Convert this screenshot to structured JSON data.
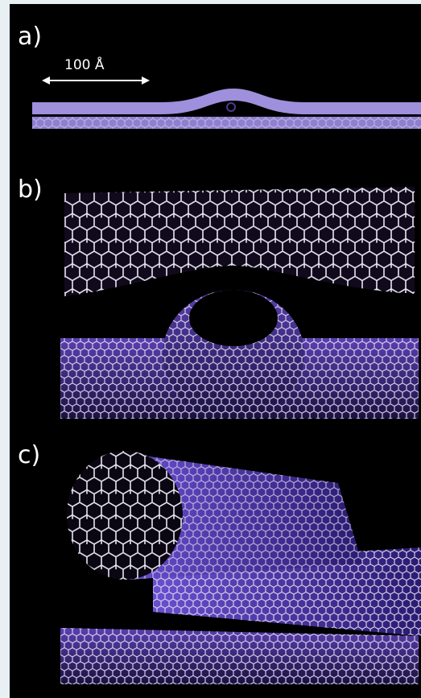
{
  "panels": [
    {
      "label": "a)",
      "scale_bar": "100 Å"
    },
    {
      "label": "b)"
    },
    {
      "label": "c)"
    }
  ]
}
